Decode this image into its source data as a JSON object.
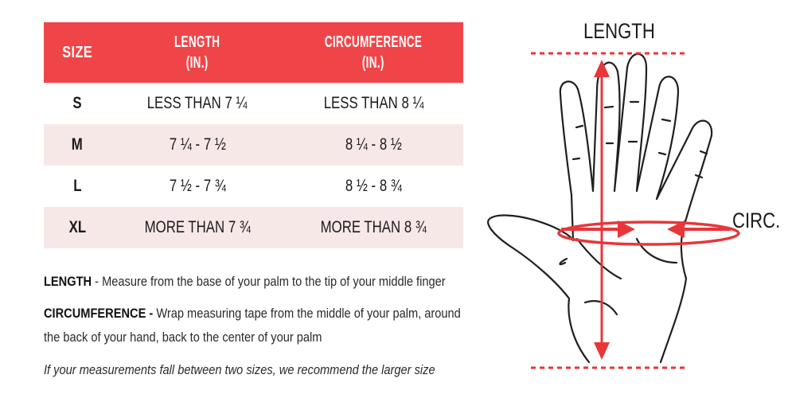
{
  "table": {
    "headers": {
      "size": "SIZE",
      "length_line1": "LENGTH",
      "length_line2": "(IN.)",
      "circ_line1": "CIRCUMFERENCE",
      "circ_line2": "(IN.)"
    },
    "rows": [
      {
        "size": "S",
        "length": "LESS THAN 7 ¼",
        "circumference": "LESS THAN 8 ¼"
      },
      {
        "size": "M",
        "length": "7 ¼ - 7 ½",
        "circumference": "8 ¼ - 8 ½"
      },
      {
        "size": "L",
        "length": "7 ½ - 7 ¾",
        "circumference": "8 ½ - 8 ¾"
      },
      {
        "size": "XL",
        "length": "MORE THAN 7 ¾",
        "circumference": "MORE THAN 8 ¾"
      }
    ]
  },
  "notes": {
    "length_term": "LENGTH",
    "length_desc": " - Measure from the base of your palm to the tip of your middle finger",
    "circ_term": "CIRCUMFERENCE -",
    "circ_desc_line1": " Wrap measuring tape from the middle of your palm, around",
    "circ_desc_line2": "the back of your hand, back to the center of your palm",
    "recommendation": "If your measurements fall between two sizes, we recommend the larger size"
  },
  "diagram": {
    "length_label": "LENGTH",
    "circ_label": "CIRC.",
    "accent_color": "#e8363a"
  }
}
